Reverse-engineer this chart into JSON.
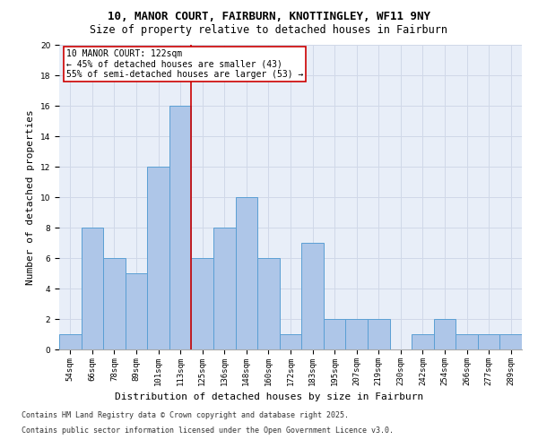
{
  "title_line1": "10, MANOR COURT, FAIRBURN, KNOTTINGLEY, WF11 9NY",
  "title_line2": "Size of property relative to detached houses in Fairburn",
  "xlabel": "Distribution of detached houses by size in Fairburn",
  "ylabel": "Number of detached properties",
  "categories": [
    "54sqm",
    "66sqm",
    "78sqm",
    "89sqm",
    "101sqm",
    "113sqm",
    "125sqm",
    "136sqm",
    "148sqm",
    "160sqm",
    "172sqm",
    "183sqm",
    "195sqm",
    "207sqm",
    "219sqm",
    "230sqm",
    "242sqm",
    "254sqm",
    "266sqm",
    "277sqm",
    "289sqm"
  ],
  "values": [
    1,
    8,
    6,
    5,
    12,
    16,
    6,
    8,
    10,
    6,
    1,
    7,
    2,
    2,
    2,
    0,
    1,
    2,
    1,
    1,
    1
  ],
  "bar_color": "#aec6e8",
  "bar_edge_color": "#5a9fd4",
  "red_line_x": 5.5,
  "annotation_title": "10 MANOR COURT: 122sqm",
  "annotation_line1": "← 45% of detached houses are smaller (43)",
  "annotation_line2": "55% of semi-detached houses are larger (53) →",
  "annotation_box_color": "#ffffff",
  "annotation_box_edge": "#cc0000",
  "ylim": [
    0,
    20
  ],
  "yticks": [
    0,
    2,
    4,
    6,
    8,
    10,
    12,
    14,
    16,
    18,
    20
  ],
  "grid_color": "#d0d8e8",
  "bg_color": "#e8eef8",
  "footer_line1": "Contains HM Land Registry data © Crown copyright and database right 2025.",
  "footer_line2": "Contains public sector information licensed under the Open Government Licence v3.0.",
  "title_fontsize": 9,
  "subtitle_fontsize": 8.5,
  "axis_label_fontsize": 8,
  "tick_fontsize": 6.5,
  "annotation_fontsize": 7,
  "footer_fontsize": 6
}
